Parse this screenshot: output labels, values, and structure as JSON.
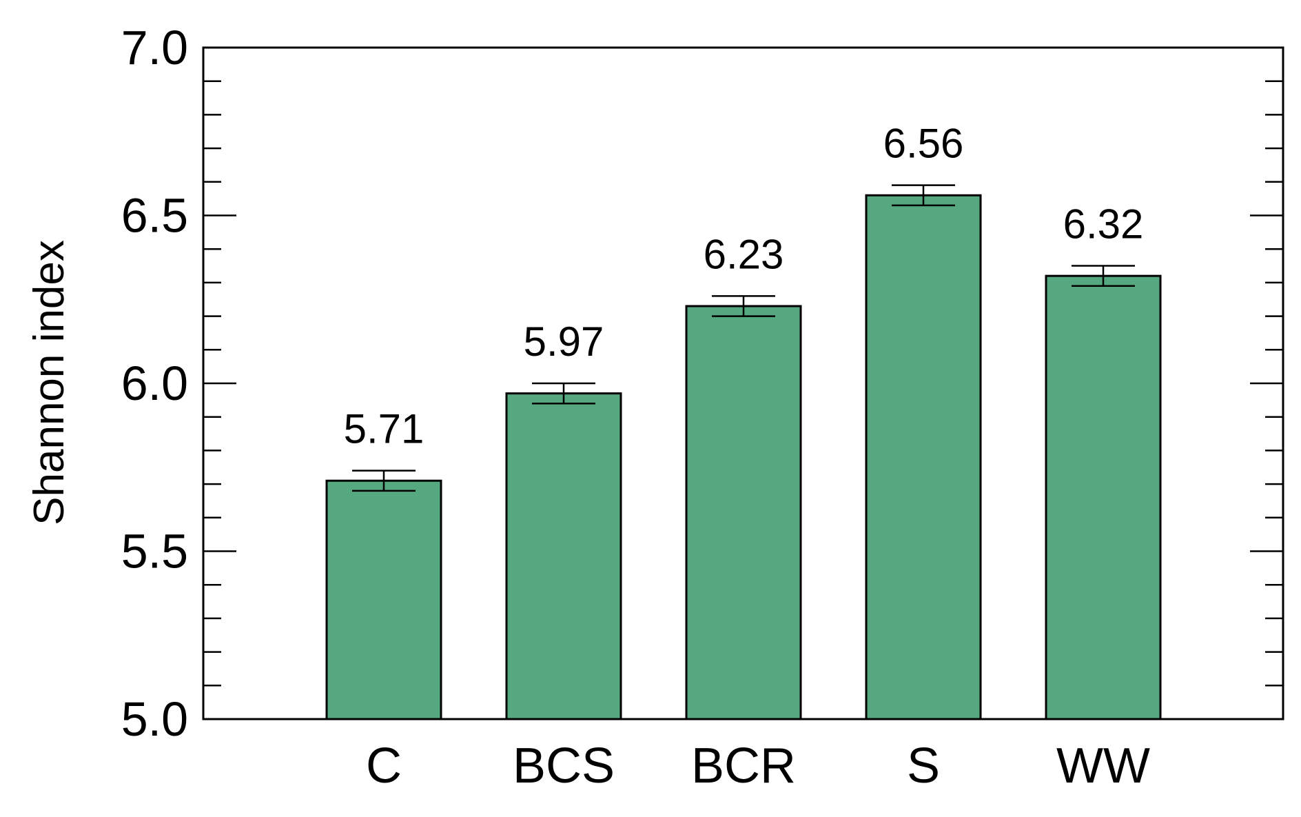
{
  "chart_data": {
    "type": "bar",
    "title": "",
    "xlabel": "",
    "ylabel": "Shannon index",
    "categories": [
      "C",
      "BCS",
      "BCR",
      "S",
      "WW"
    ],
    "values": [
      5.71,
      5.97,
      6.23,
      6.56,
      6.32
    ],
    "data_labels": [
      "5.71",
      "5.97",
      "6.23",
      "6.56",
      "6.32"
    ],
    "error_bars": [
      0.03,
      0.03,
      0.03,
      0.03,
      0.03
    ],
    "ylim": [
      5.0,
      7.0
    ],
    "yticks": [
      5.0,
      5.5,
      6.0,
      6.5,
      7.0
    ],
    "ytick_labels": [
      "5.0",
      "5.5",
      "6.0",
      "6.5",
      "7.0"
    ],
    "minor_tick_step": 0.1,
    "grid": false,
    "legend": "none",
    "colors": {
      "bar_fill": "#56A880",
      "bar_stroke": "#000000",
      "axis": "#000000"
    }
  }
}
